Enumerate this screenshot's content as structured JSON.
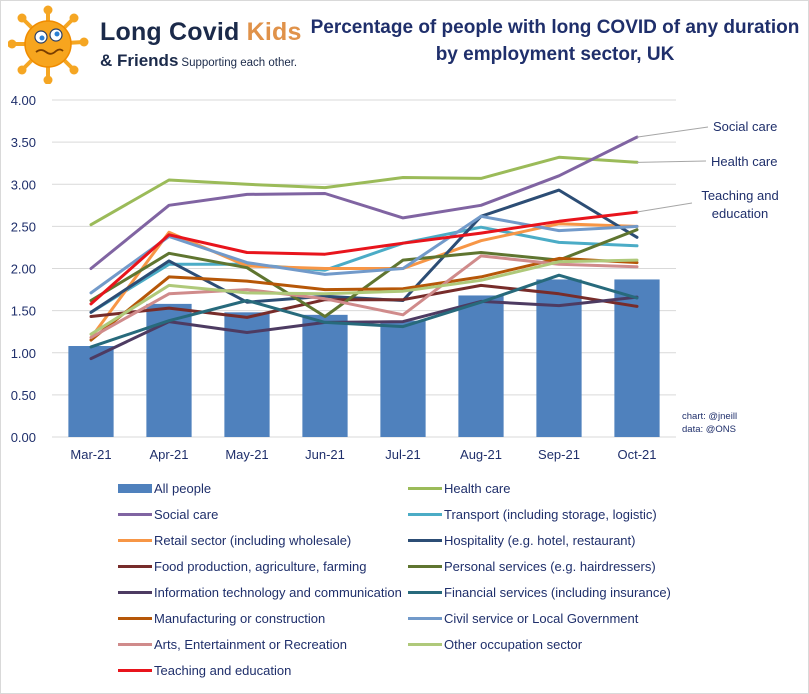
{
  "logo": {
    "brand_main": "Long Covid ",
    "brand_accent": "Kids",
    "brand_friends": "& Friends",
    "tagline": "Supporting each other."
  },
  "credits": {
    "chart": "chart: @jneill",
    "data": "data: @ONS"
  },
  "chart_data": {
    "type": "bar+line",
    "title": "Percentage of people with long COVID of any duration by employment sector, UK",
    "title_lines": [
      "Percentage of people with long COVID of any duration",
      "by employment sector, UK"
    ],
    "xlabel": "",
    "ylabel": "",
    "categories": [
      "Mar-21",
      "Apr-21",
      "May-21",
      "Jun-21",
      "Jul-21",
      "Aug-21",
      "Sep-21",
      "Oct-21"
    ],
    "ylim": [
      0,
      4
    ],
    "yticks": [
      "0.00",
      "0.50",
      "1.00",
      "1.50",
      "2.00",
      "2.50",
      "3.00",
      "3.50",
      "4.00"
    ],
    "grid": true,
    "legend_position": "bottom",
    "bar_series": {
      "name": "All people",
      "color": "#4f81bd",
      "values": [
        1.08,
        1.58,
        1.48,
        1.45,
        1.38,
        1.68,
        1.87,
        1.87
      ]
    },
    "series": [
      {
        "name": "Health care",
        "color": "#9bbb59",
        "values": [
          2.52,
          3.05,
          3.0,
          2.96,
          3.08,
          3.07,
          3.32,
          3.26
        ]
      },
      {
        "name": "Social care",
        "color": "#8064a2",
        "values": [
          2.0,
          2.75,
          2.88,
          2.89,
          2.6,
          2.75,
          3.1,
          3.56
        ]
      },
      {
        "name": "Transport (including storage, logistic)",
        "color": "#4bacc6",
        "values": [
          1.48,
          2.05,
          2.05,
          1.98,
          2.3,
          2.49,
          2.31,
          2.27
        ]
      },
      {
        "name": "Retail sector (including wholesale)",
        "color": "#f79646",
        "values": [
          1.18,
          2.43,
          2.03,
          2.0,
          2.0,
          2.33,
          2.53,
          2.5
        ]
      },
      {
        "name": "Hospitality (e.g. hotel, restaurant)",
        "color": "#2c4d75",
        "values": [
          1.48,
          2.09,
          1.6,
          1.67,
          1.62,
          2.62,
          2.93,
          2.37
        ]
      },
      {
        "name": "Food production, agriculture, farming",
        "color": "#772c2a",
        "values": [
          1.43,
          1.53,
          1.42,
          1.63,
          1.63,
          1.8,
          1.7,
          1.55
        ]
      },
      {
        "name": "Personal services (e.g. hairdressers)",
        "color": "#5f7530",
        "values": [
          1.62,
          2.18,
          2.01,
          1.43,
          2.1,
          2.19,
          2.1,
          2.46
        ]
      },
      {
        "name": "Information technology and communication",
        "color": "#4d3b62",
        "values": [
          0.93,
          1.37,
          1.24,
          1.36,
          1.37,
          1.61,
          1.56,
          1.66
        ]
      },
      {
        "name": "Financial services (including insurance)",
        "color": "#276a7c",
        "values": [
          1.07,
          1.38,
          1.62,
          1.36,
          1.31,
          1.6,
          1.92,
          1.65
        ]
      },
      {
        "name": "Manufacturing or construction",
        "color": "#b65708",
        "values": [
          1.15,
          1.9,
          1.85,
          1.75,
          1.76,
          1.9,
          2.12,
          2.07
        ]
      },
      {
        "name": "Civil service or Local Government",
        "color": "#729aca",
        "values": [
          1.71,
          2.38,
          2.07,
          1.93,
          2.0,
          2.62,
          2.45,
          2.5
        ]
      },
      {
        "name": "Arts, Entertainment or Recreation",
        "color": "#d08b8b",
        "values": [
          1.18,
          1.7,
          1.75,
          1.64,
          1.45,
          2.15,
          2.05,
          2.02
        ]
      },
      {
        "name": "Other occupation sector",
        "color": "#afc97a",
        "values": [
          1.22,
          1.8,
          1.71,
          1.7,
          1.73,
          1.86,
          2.08,
          2.1
        ]
      },
      {
        "name": "Teaching and education",
        "color": "#e8141c",
        "values": [
          1.58,
          2.4,
          2.19,
          2.17,
          2.3,
          2.42,
          2.56,
          2.67
        ]
      }
    ],
    "annotations": [
      {
        "text": "Social care",
        "series": "Social care"
      },
      {
        "text": "Health care",
        "series": "Health care"
      },
      {
        "text": "Teaching and education",
        "series": "Teaching and education",
        "lines": [
          "Teaching and",
          "education"
        ]
      }
    ],
    "legend_order": [
      "All people",
      "Health care",
      "Social care",
      "Transport (including storage, logistic)",
      "Retail sector (including wholesale)",
      "Hospitality (e.g. hotel, restaurant)",
      "Food production, agriculture, farming",
      "Personal services (e.g. hairdressers)",
      "Information technology and communication",
      "Financial services (including insurance)",
      "Manufacturing or construction",
      "Civil service or Local Government",
      "Arts, Entertainment or Recreation",
      "Other occupation sector",
      "Teaching and education"
    ]
  }
}
